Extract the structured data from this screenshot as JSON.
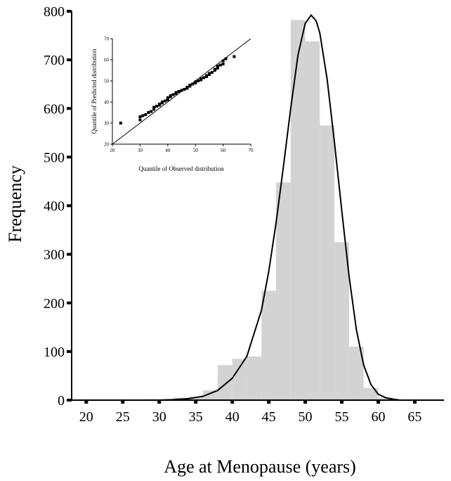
{
  "chart_data": [
    {
      "type": "bar",
      "xlabel": "Age at Menopause (years)",
      "ylabel": "Frequency",
      "xlim": [
        18,
        69
      ],
      "ylim": [
        0,
        800
      ],
      "x_ticks": [
        20,
        25,
        30,
        35,
        40,
        45,
        50,
        55,
        60,
        65
      ],
      "y_ticks": [
        0,
        100,
        200,
        300,
        400,
        500,
        600,
        700,
        800
      ],
      "bin_width": 2,
      "bins": [
        {
          "start": 28,
          "value": 2
        },
        {
          "start": 30,
          "value": 2
        },
        {
          "start": 32,
          "value": 5
        },
        {
          "start": 34,
          "value": 7
        },
        {
          "start": 36,
          "value": 20
        },
        {
          "start": 38,
          "value": 72
        },
        {
          "start": 40,
          "value": 85
        },
        {
          "start": 42,
          "value": 90
        },
        {
          "start": 44,
          "value": 225
        },
        {
          "start": 46,
          "value": 448
        },
        {
          "start": 48,
          "value": 782
        },
        {
          "start": 50,
          "value": 738
        },
        {
          "start": 52,
          "value": 565
        },
        {
          "start": 54,
          "value": 325
        },
        {
          "start": 56,
          "value": 110
        },
        {
          "start": 58,
          "value": 25
        },
        {
          "start": 60,
          "value": 5
        }
      ],
      "fit_curve": {
        "x": [
          30,
          32,
          34,
          36,
          38,
          40,
          42,
          44,
          45,
          46,
          47,
          48,
          49,
          50,
          50.8,
          51.5,
          52,
          53,
          54,
          55,
          56,
          57,
          58,
          59,
          60,
          61,
          62,
          63
        ],
        "y": [
          0,
          1,
          3,
          8,
          20,
          45,
          90,
          185,
          265,
          365,
          480,
          600,
          710,
          775,
          792,
          780,
          755,
          660,
          530,
          390,
          255,
          145,
          72,
          32,
          12,
          5,
          2,
          0
        ]
      },
      "grid": false,
      "legend": "none"
    },
    {
      "type": "scatter",
      "xlabel": "Quantile of Observed distribution",
      "ylabel": "Quantile of Predicted distribution",
      "xlim": [
        20,
        70
      ],
      "ylim": [
        20,
        70
      ],
      "x_ticks": [
        20,
        30,
        40,
        50,
        60,
        70
      ],
      "y_ticks": [
        20,
        30,
        40,
        50,
        60,
        70
      ],
      "reference_line": "y = x",
      "x": [
        23,
        30,
        30,
        31,
        32,
        33,
        34,
        35,
        35,
        36,
        37,
        37,
        38,
        38,
        39,
        40,
        40,
        41,
        41,
        42,
        43,
        43,
        44,
        45,
        46,
        47,
        47,
        48,
        48,
        49,
        50,
        50,
        51,
        52,
        52,
        53,
        54,
        54,
        55,
        55,
        56,
        57,
        57,
        58,
        58,
        59,
        60,
        60,
        61,
        64
      ],
      "y": [
        30,
        31.5,
        33,
        33.5,
        34,
        35,
        35.5,
        36.5,
        37.5,
        38,
        38.5,
        39,
        39.5,
        40,
        40.5,
        41,
        42,
        42.5,
        43,
        43.5,
        44,
        44.5,
        45,
        45.5,
        46,
        46.5,
        47,
        47.5,
        48,
        48.5,
        49,
        49.5,
        50,
        50.5,
        51,
        51.5,
        52,
        52.5,
        53,
        53.5,
        54,
        55,
        55.5,
        56,
        57,
        57.5,
        58,
        59.5,
        60.5,
        61.5
      ]
    }
  ]
}
